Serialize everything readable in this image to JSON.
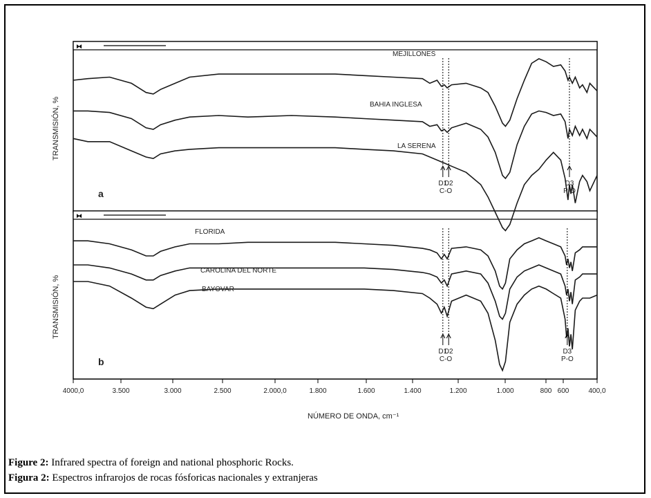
{
  "caption": {
    "line1_label": "Figure 2:",
    "line1_text": " Infrared spectra of foreign and national phosphoric Rocks.",
    "line2_label": "Figura 2:",
    "line2_text": " Espectros infrarojos de rocas fósforicas nacionales y extranjeras"
  },
  "colors": {
    "line": "#1a1a1a",
    "frame": "#000000"
  },
  "chart_data": [
    {
      "type": "line",
      "panel_label": "a",
      "ylabel": "TRANSMISIÓN, %",
      "x_axis": "reversed",
      "xlim": [
        4000,
        400
      ],
      "series": [
        {
          "name": "MEJILLONES",
          "x": [
            4000,
            3900,
            3750,
            3600,
            3500,
            3450,
            3400,
            3300,
            3200,
            3000,
            2800,
            2500,
            2200,
            2000,
            1800,
            1600,
            1550,
            1500,
            1470,
            1450,
            1430,
            1400,
            1300,
            1200,
            1150,
            1100,
            1050,
            1030,
            1000,
            950,
            900,
            850,
            800,
            750,
            700,
            650,
            620,
            600,
            590,
            570,
            550,
            520,
            500,
            470,
            450,
            400
          ],
          "y": [
            82,
            83,
            84,
            80,
            74,
            73,
            76,
            80,
            84,
            86,
            86,
            86,
            86,
            85,
            84,
            83,
            80,
            82,
            78,
            79,
            77,
            79,
            80,
            77,
            74,
            65,
            54,
            52,
            56,
            70,
            82,
            93,
            96,
            94,
            91,
            92,
            88,
            82,
            84,
            80,
            84,
            77,
            79,
            74,
            80,
            75
          ]
        },
        {
          "name": "BAHIA INGLESA",
          "x": [
            4000,
            3900,
            3750,
            3600,
            3500,
            3450,
            3400,
            3300,
            3200,
            3000,
            2800,
            2500,
            2200,
            2000,
            1800,
            1600,
            1550,
            1500,
            1470,
            1450,
            1430,
            1400,
            1300,
            1200,
            1150,
            1100,
            1050,
            1030,
            1000,
            950,
            900,
            850,
            800,
            750,
            700,
            650,
            620,
            600,
            590,
            570,
            550,
            520,
            500,
            470,
            450,
            400
          ],
          "y": [
            62,
            62,
            61,
            57,
            51,
            50,
            53,
            56,
            58,
            59,
            58,
            59,
            58,
            57,
            56,
            55,
            52,
            53,
            49,
            50,
            48,
            51,
            54,
            50,
            45,
            35,
            20,
            18,
            22,
            40,
            52,
            60,
            62,
            61,
            59,
            60,
            55,
            44,
            50,
            46,
            52,
            46,
            50,
            44,
            50,
            45
          ]
        },
        {
          "name": "LA SERENA",
          "x": [
            4000,
            3900,
            3750,
            3600,
            3500,
            3450,
            3400,
            3300,
            3200,
            3000,
            2800,
            2500,
            2200,
            2000,
            1800,
            1600,
            1500,
            1450,
            1400,
            1300,
            1200,
            1150,
            1100,
            1050,
            1030,
            1000,
            950,
            900,
            850,
            800,
            750,
            700,
            650,
            620,
            600,
            590,
            580,
            570,
            550,
            520,
            500,
            470,
            450,
            400
          ],
          "y": [
            44,
            42,
            42,
            36,
            32,
            31,
            34,
            36,
            37,
            38,
            38,
            38,
            38,
            37,
            36,
            34,
            30,
            28,
            26,
            22,
            14,
            6,
            -4,
            -14,
            -16,
            -12,
            2,
            14,
            20,
            24,
            30,
            35,
            30,
            18,
            4,
            14,
            8,
            14,
            2,
            16,
            20,
            16,
            10,
            20
          ]
        }
      ],
      "annotations": [
        {
          "label": "D1",
          "x": 1460,
          "group": "C-O"
        },
        {
          "label": "D2",
          "x": 1420,
          "group": "C-O"
        },
        {
          "label": "D3",
          "x": 590,
          "group": "P-O"
        }
      ]
    },
    {
      "type": "line",
      "panel_label": "b",
      "ylabel": "TRANSMISIÓN, %",
      "x_axis": "reversed",
      "xlim": [
        4000,
        400
      ],
      "xlabel": "NÚMERO DE ONDA, cm⁻¹",
      "x_ticks": [
        "4000,0",
        "3.500",
        "3.000",
        "2.500",
        "2.000,0",
        "1.800",
        "1.600",
        "1.400",
        "1.200",
        "1.000",
        "800",
        "600",
        "400,0"
      ],
      "series": [
        {
          "name": "FLORIDA",
          "x": [
            4000,
            3900,
            3750,
            3600,
            3500,
            3450,
            3400,
            3300,
            3200,
            3000,
            2800,
            2500,
            2200,
            2000,
            1800,
            1600,
            1550,
            1500,
            1470,
            1450,
            1430,
            1400,
            1300,
            1200,
            1150,
            1100,
            1070,
            1050,
            1030,
            1000,
            950,
            900,
            850,
            800,
            750,
            700,
            650,
            620,
            610,
            600,
            590,
            580,
            570,
            550,
            520,
            500,
            450,
            400
          ],
          "y": [
            88,
            88,
            86,
            82,
            78,
            78,
            81,
            84,
            86,
            86,
            87,
            87,
            87,
            86,
            85,
            83,
            82,
            80,
            76,
            79,
            76,
            83,
            84,
            82,
            78,
            68,
            58,
            56,
            60,
            76,
            82,
            86,
            88,
            90,
            88,
            86,
            84,
            78,
            72,
            76,
            70,
            74,
            68,
            80,
            82,
            84,
            84,
            84
          ]
        },
        {
          "name": "CAROLINA DEL NORTE",
          "x": [
            4000,
            3900,
            3750,
            3600,
            3500,
            3450,
            3400,
            3300,
            3200,
            3000,
            2800,
            2500,
            2200,
            2000,
            1800,
            1600,
            1550,
            1500,
            1470,
            1450,
            1430,
            1400,
            1300,
            1200,
            1150,
            1100,
            1070,
            1050,
            1030,
            1000,
            950,
            900,
            850,
            800,
            750,
            700,
            650,
            620,
            610,
            600,
            590,
            580,
            570,
            550,
            520,
            500,
            450,
            400
          ],
          "y": [
            72,
            72,
            70,
            66,
            62,
            62,
            65,
            68,
            70,
            70,
            70,
            70,
            70,
            70,
            69,
            67,
            66,
            64,
            60,
            62,
            58,
            66,
            68,
            66,
            60,
            48,
            38,
            36,
            40,
            56,
            64,
            68,
            70,
            72,
            70,
            68,
            66,
            58,
            52,
            56,
            48,
            54,
            46,
            62,
            64,
            66,
            66,
            66
          ]
        },
        {
          "name": "BAYOVAR",
          "x": [
            4000,
            3900,
            3750,
            3600,
            3500,
            3450,
            3400,
            3300,
            3200,
            3000,
            2800,
            2500,
            2200,
            2000,
            1800,
            1600,
            1550,
            1500,
            1470,
            1450,
            1430,
            1400,
            1300,
            1200,
            1150,
            1100,
            1070,
            1050,
            1030,
            1000,
            950,
            900,
            850,
            800,
            750,
            700,
            650,
            620,
            610,
            600,
            590,
            580,
            570,
            550,
            520,
            500,
            450,
            400
          ],
          "y": [
            61,
            61,
            58,
            50,
            44,
            43,
            46,
            52,
            55,
            56,
            56,
            56,
            56,
            56,
            55,
            53,
            50,
            46,
            40,
            44,
            38,
            48,
            52,
            48,
            40,
            22,
            6,
            2,
            8,
            34,
            46,
            52,
            56,
            58,
            56,
            53,
            50,
            36,
            24,
            30,
            18,
            26,
            16,
            42,
            48,
            50,
            50,
            52
          ]
        }
      ],
      "annotations": [
        {
          "label": "D1",
          "x": 1460,
          "group": "C-O"
        },
        {
          "label": "D2",
          "x": 1420,
          "group": "C-O"
        },
        {
          "label": "D3",
          "x": 605,
          "group": "P-O"
        }
      ]
    }
  ]
}
